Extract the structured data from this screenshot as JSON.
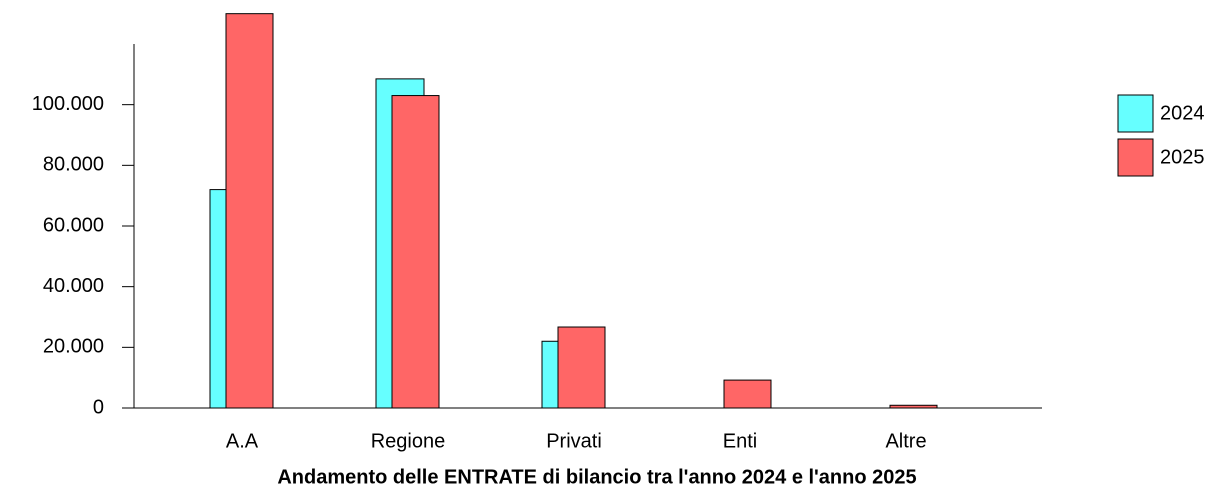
{
  "chart_data": {
    "type": "bar",
    "title": "Andamento delle ENTRATE di bilancio tra l'anno 2024 e l'anno 2025",
    "categories": [
      "A.A",
      "Regione",
      "Privati",
      "Enti",
      "Altre"
    ],
    "series": [
      {
        "name": "2024",
        "color": "#66ffff",
        "values": [
          72000,
          108500,
          22000,
          0,
          0
        ]
      },
      {
        "name": "2025",
        "color": "#ff6666",
        "values": [
          130000,
          103000,
          26700,
          9200,
          900
        ]
      }
    ],
    "ylim": [
      0,
      120000
    ],
    "yticks": [
      {
        "value": 0,
        "label": "0"
      },
      {
        "value": 20000,
        "label": "20.000"
      },
      {
        "value": 40000,
        "label": "40.000"
      },
      {
        "value": 60000,
        "label": "60.000"
      },
      {
        "value": 80000,
        "label": "80.000"
      },
      {
        "value": 100000,
        "label": "100.000"
      }
    ],
    "grid": false
  }
}
